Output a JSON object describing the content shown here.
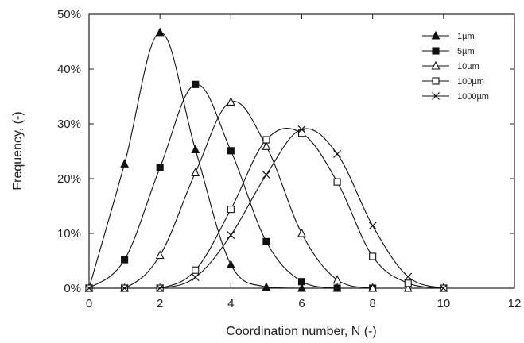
{
  "chart_data": {
    "type": "line",
    "title": "",
    "xlabel": "Coordination number, N (-)",
    "ylabel": "Frequency, (-)",
    "xlim": [
      0,
      12
    ],
    "ylim": [
      0,
      50
    ],
    "xticks": [
      "0",
      "2",
      "4",
      "6",
      "8",
      "10",
      "12"
    ],
    "yticks": [
      "0%",
      "10%",
      "20%",
      "30%",
      "40%",
      "50%"
    ],
    "grid": false,
    "legend_position": "top-right",
    "series": [
      {
        "name": "1µm",
        "marker": "filled-triangle",
        "x": [
          0,
          1,
          2,
          3,
          4,
          5,
          6,
          7,
          8
        ],
        "y": [
          0,
          22.7,
          46.7,
          25.3,
          4.3,
          0.2,
          0,
          0,
          0
        ]
      },
      {
        "name": "5µm",
        "marker": "filled-square",
        "x": [
          0,
          1,
          2,
          3,
          4,
          5,
          6,
          7,
          8
        ],
        "y": [
          0,
          5.2,
          22,
          37.2,
          25.1,
          8.5,
          1.2,
          0,
          0
        ]
      },
      {
        "name": "10µm",
        "marker": "open-triangle",
        "x": [
          0,
          1,
          2,
          3,
          4,
          5,
          6,
          7,
          8,
          9,
          10
        ],
        "y": [
          0,
          0,
          6,
          21.1,
          34,
          25.9,
          10,
          1.5,
          0,
          0,
          0
        ]
      },
      {
        "name": "100µm",
        "marker": "open-square",
        "x": [
          0,
          1,
          2,
          3,
          4,
          5,
          6,
          7,
          8,
          9,
          10
        ],
        "y": [
          0,
          0,
          0,
          3.3,
          14.4,
          27.1,
          28.3,
          19.4,
          5.8,
          0.9,
          0
        ]
      },
      {
        "name": "1000µm",
        "marker": "x",
        "x": [
          0,
          1,
          2,
          3,
          4,
          5,
          6,
          7,
          8,
          9,
          10
        ],
        "y": [
          0,
          0,
          0,
          2,
          9.7,
          20.7,
          29,
          24.5,
          11.4,
          2.1,
          0
        ]
      }
    ]
  }
}
